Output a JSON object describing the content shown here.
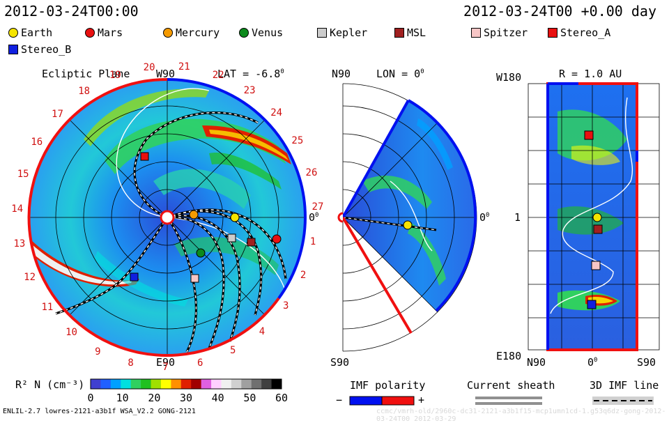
{
  "header": {
    "timestamp": "2012-03-24T00:00",
    "right_stamp": "2012-03-24T00 +0.00 day"
  },
  "legend": [
    {
      "label": "Earth",
      "shape": "circle",
      "color": "#f5e400"
    },
    {
      "label": "Mars",
      "shape": "circle",
      "color": "#e81010"
    },
    {
      "label": "Mercury",
      "shape": "circle",
      "color": "#f59a00"
    },
    {
      "label": "Venus",
      "shape": "circle",
      "color": "#0c8a1c"
    },
    {
      "label": "Kepler",
      "shape": "square",
      "color": "#cccccc"
    },
    {
      "label": "MSL",
      "shape": "square",
      "color": "#a02020"
    },
    {
      "label": "Spitzer",
      "shape": "square",
      "color": "#f7c6c6"
    },
    {
      "label": "Stereo_A",
      "shape": "square",
      "color": "#e81010"
    },
    {
      "label": "Stereo_B",
      "shape": "square",
      "color": "#1020e0"
    }
  ],
  "ecliptic": {
    "title": "Ecliptic Plane",
    "top_label": "W90",
    "bottom_label": "E90",
    "right_label": "0",
    "right_label_sup": "0",
    "lat_label": "LAT = -6.8",
    "lat_sup": "0",
    "carrington_numbers": [
      "20",
      "21",
      "22",
      "23",
      "24",
      "25",
      "26",
      "27",
      "1",
      "2",
      "3",
      "4",
      "5",
      "6",
      "7",
      "8",
      "9",
      "10",
      "11",
      "12",
      "13",
      "14",
      "15",
      "16",
      "17",
      "18",
      "19"
    ]
  },
  "meridional": {
    "top_label": "N90",
    "lon_label": "LON = 0",
    "lon_sup": "0",
    "right_label": "0",
    "right_label_sup": "0",
    "bottom_label": "S90"
  },
  "radial": {
    "title": "R = 1.0 AU",
    "top_left_label": "W180",
    "mid_left_label": "1",
    "bottom_left_label": "E180",
    "bottom_labels": [
      "N90",
      "0",
      "S90"
    ],
    "bottom_mid_sup": "0"
  },
  "colorbar": {
    "label": "R² N (cm⁻³)",
    "ticks": [
      "0",
      "10",
      "20",
      "30",
      "40",
      "50",
      "60"
    ],
    "colors": [
      "#4040d0",
      "#2060ff",
      "#00a0ff",
      "#00e0e0",
      "#30d060",
      "#20c020",
      "#a0e000",
      "#ffff00",
      "#ff9000",
      "#e02000",
      "#a00000",
      "#e060e0",
      "#ffd0ff",
      "#f0f0f0",
      "#d0d0d0",
      "#a0a0a0",
      "#707070",
      "#404040",
      "#000000"
    ]
  },
  "imf_polarity": {
    "label": "IMF polarity",
    "minus": "−",
    "plus": "+",
    "neg_color": "#0010f0",
    "pos_color": "#f01010"
  },
  "current_sheath": {
    "label": "Current sheath"
  },
  "imf_line": {
    "label": "3D IMF line"
  },
  "footer": {
    "model": "ENLIL-2.7 lowres-2121-a3b1f WSA_V2.2 GONG-2121",
    "faint": "ccmc/vmrh-old/2960c-dc31-2121-a3b1f15-mcp1umn1cd-1.g53q6dz-gong-2012-03-24T00   2012-03-29"
  }
}
